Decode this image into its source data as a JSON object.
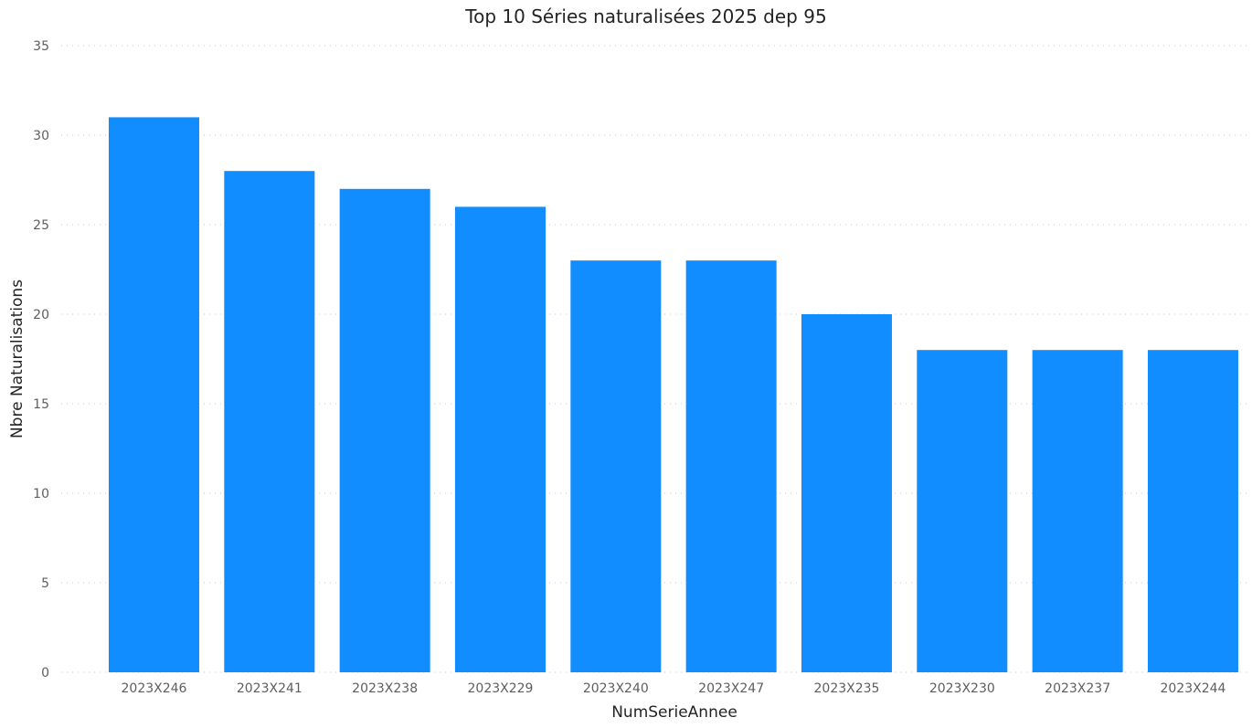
{
  "chart_data": {
    "type": "bar",
    "title": "Top 10 Séries naturalisées 2025 dep 95",
    "xlabel": "NumSerieAnnee",
    "ylabel": "Nbre Naturalisations",
    "categories": [
      "2023X246",
      "2023X241",
      "2023X238",
      "2023X229",
      "2023X240",
      "2023X247",
      "2023X235",
      "2023X230",
      "2023X237",
      "2023X244"
    ],
    "values": [
      31,
      28,
      27,
      26,
      23,
      23,
      20,
      18,
      18,
      18
    ],
    "ylim": [
      0,
      35
    ],
    "yticks": [
      "0",
      "5",
      "10",
      "15",
      "20",
      "25",
      "30",
      "35"
    ],
    "grid": true,
    "legend": "none",
    "colors": {
      "bar": "#118DFF",
      "gridline": "#C8C6C4",
      "tick_text": "#605E5C",
      "title_text": "#252423"
    }
  }
}
